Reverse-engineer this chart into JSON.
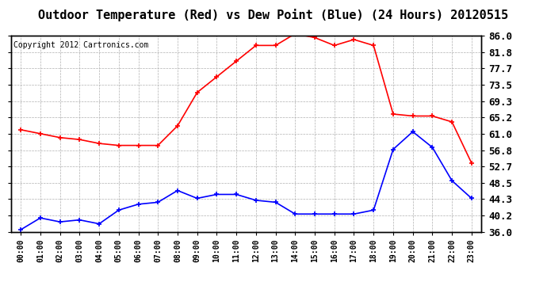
{
  "title": "Outdoor Temperature (Red) vs Dew Point (Blue) (24 Hours) 20120515",
  "copyright": "Copyright 2012 Cartronics.com",
  "x_labels": [
    "00:00",
    "01:00",
    "02:00",
    "03:00",
    "04:00",
    "05:00",
    "06:00",
    "07:00",
    "08:00",
    "09:00",
    "10:00",
    "11:00",
    "12:00",
    "13:00",
    "14:00",
    "15:00",
    "16:00",
    "17:00",
    "18:00",
    "19:00",
    "20:00",
    "21:00",
    "22:00",
    "23:00"
  ],
  "temp_red": [
    62.0,
    61.0,
    60.0,
    59.5,
    58.5,
    58.0,
    58.0,
    58.0,
    63.0,
    71.5,
    75.5,
    79.5,
    83.5,
    83.5,
    86.5,
    85.5,
    83.5,
    85.0,
    83.5,
    66.0,
    65.5,
    65.5,
    64.0,
    53.5
  ],
  "dew_blue": [
    36.5,
    39.5,
    38.5,
    39.0,
    38.0,
    41.5,
    43.0,
    43.5,
    46.5,
    44.5,
    45.5,
    45.5,
    44.0,
    43.5,
    40.5,
    40.5,
    40.5,
    40.5,
    41.5,
    57.0,
    61.5,
    57.5,
    49.0,
    44.5
  ],
  "ylim": [
    36.0,
    86.0
  ],
  "yticks": [
    36.0,
    40.2,
    44.3,
    48.5,
    52.7,
    56.8,
    61.0,
    65.2,
    69.3,
    73.5,
    77.7,
    81.8,
    86.0
  ],
  "bg_color": "#ffffff",
  "grid_color": "#b0b0b0",
  "red_color": "#ff0000",
  "blue_color": "#0000ff",
  "title_fontsize": 11,
  "copyright_fontsize": 7,
  "tick_fontsize": 9,
  "xtick_fontsize": 7
}
